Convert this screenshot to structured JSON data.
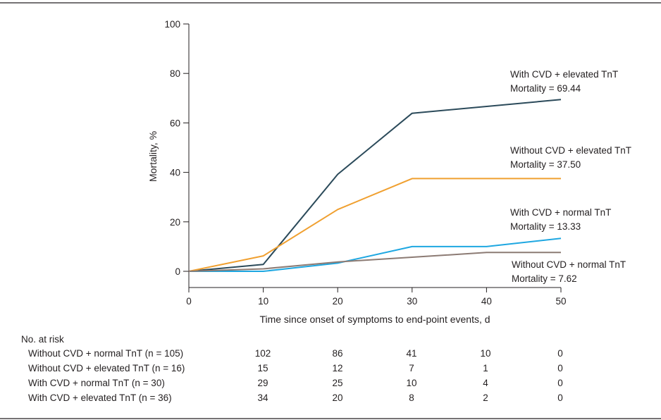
{
  "chart_data": {
    "type": "line",
    "xlabel": "Time since onset of symptoms to end-point events, d",
    "ylabel": "Mortality, %",
    "xlim": [
      0,
      50
    ],
    "ylim": [
      0,
      100
    ],
    "x_ticks": [
      "0",
      "10",
      "20",
      "30",
      "40",
      "50"
    ],
    "y_ticks": [
      "0",
      "20",
      "40",
      "60",
      "80",
      "100"
    ],
    "grid": false,
    "series": [
      {
        "key": "cvd_elev",
        "color": "#2b4a5a",
        "points": [
          [
            0,
            0
          ],
          [
            10,
            2.8
          ],
          [
            20,
            39.2
          ],
          [
            30,
            63.9
          ],
          [
            50,
            69.44
          ]
        ]
      },
      {
        "key": "nocvd_elev",
        "color": "#f0a030",
        "points": [
          [
            0,
            0
          ],
          [
            10,
            6.25
          ],
          [
            20,
            25.0
          ],
          [
            30,
            37.5
          ],
          [
            50,
            37.5
          ]
        ]
      },
      {
        "key": "cvd_norm",
        "color": "#1ea7e1",
        "points": [
          [
            0,
            0
          ],
          [
            10,
            0
          ],
          [
            20,
            3.3
          ],
          [
            30,
            10.0
          ],
          [
            40,
            10.0
          ],
          [
            50,
            13.33
          ]
        ]
      },
      {
        "key": "nocvd_norm",
        "color": "#8c7b74",
        "points": [
          [
            0,
            0
          ],
          [
            10,
            1.0
          ],
          [
            20,
            3.8
          ],
          [
            30,
            5.7
          ],
          [
            40,
            7.62
          ],
          [
            50,
            7.62
          ]
        ]
      }
    ],
    "annotations": [
      {
        "line1": "With CVD + elevated TnT",
        "line2": "Mortality = 69.44"
      },
      {
        "line1": "Without CVD + elevated TnT",
        "line2": "Mortality = 37.50"
      },
      {
        "line1": "With CVD + normal TnT",
        "line2": "Mortality = 13.33"
      },
      {
        "line1": "Without CVD + normal TnT",
        "line2": "Mortality = 7.62"
      }
    ],
    "risk_table": {
      "title": "No. at risk",
      "rows": [
        {
          "label": "Without CVD + normal TnT (n = 105)",
          "values": [
            "102",
            "86",
            "41",
            "10",
            "0"
          ]
        },
        {
          "label": "Without CVD + elevated TnT (n = 16)",
          "values": [
            "15",
            "12",
            "7",
            "1",
            "0"
          ]
        },
        {
          "label": "With CVD + normal TnT (n = 30)",
          "values": [
            "29",
            "25",
            "10",
            "4",
            "0"
          ]
        },
        {
          "label": "With CVD + elevated TnT (n = 36)",
          "values": [
            "34",
            "20",
            "8",
            "2",
            "0"
          ]
        }
      ]
    }
  }
}
